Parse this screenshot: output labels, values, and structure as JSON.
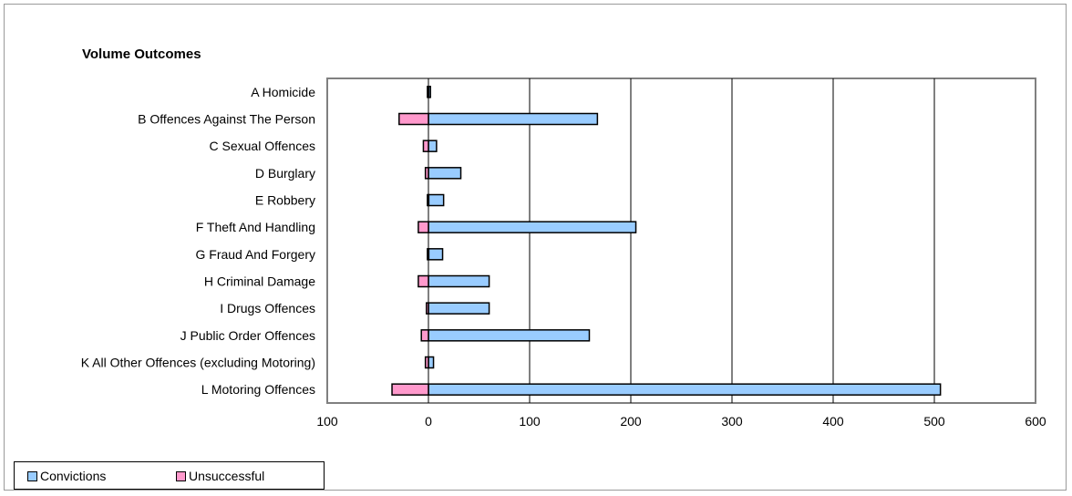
{
  "chart_data": {
    "type": "bar",
    "orientation": "horizontal",
    "stacking": "diverging",
    "title": "Volume Outcomes",
    "xlabel": "",
    "ylabel": "",
    "xlim": [
      -100,
      600
    ],
    "x_ticks": [
      -100,
      0,
      100,
      200,
      300,
      400,
      500,
      600
    ],
    "x_tick_labels": [
      "100",
      "0",
      "100",
      "200",
      "300",
      "400",
      "500",
      "600"
    ],
    "grid": "vertical major gridlines",
    "legend_position": "bottom-left",
    "categories": [
      "A Homicide",
      "B Offences Against The Person",
      "C Sexual Offences",
      "D Burglary",
      "E Robbery",
      "F Theft And Handling",
      "G Fraud And Forgery",
      "H Criminal Damage",
      "I Drugs Offences",
      "J Public Order Offences",
      "K All Other Offences (excluding Motoring)",
      "L Motoring Offences"
    ],
    "series": [
      {
        "name": "Convictions",
        "color": "#99ccff",
        "values": [
          2,
          167,
          8,
          32,
          15,
          205,
          14,
          60,
          60,
          159,
          5,
          506
        ]
      },
      {
        "name": "Unsuccessful",
        "color": "#ff99cc",
        "values": [
          -1,
          -29,
          -5,
          -3,
          -1,
          -10,
          -1,
          -10,
          -2,
          -7,
          -3,
          -36
        ]
      }
    ]
  }
}
